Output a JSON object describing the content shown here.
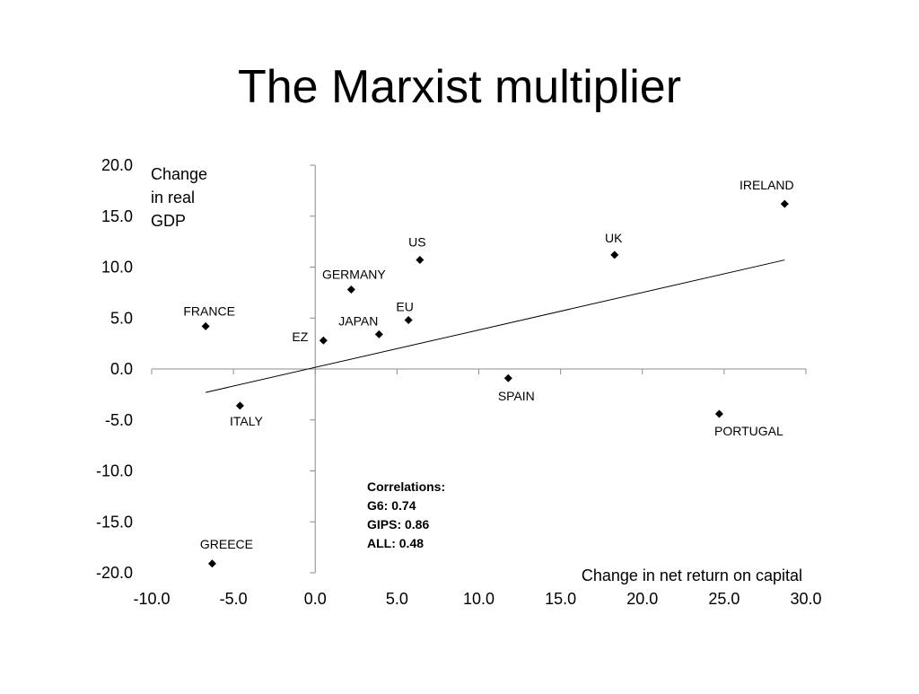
{
  "slide": {
    "title": "The Marxist multiplier"
  },
  "chart_data": {
    "type": "scatter",
    "xlabel": "Change in net return on capital",
    "ylabel_lines": [
      "Change",
      "in real",
      "GDP"
    ],
    "xlim": [
      -10,
      30
    ],
    "ylim": [
      -20,
      20
    ],
    "xticks": [
      -10,
      -5,
      0,
      5,
      10,
      15,
      20,
      25,
      30
    ],
    "yticks": [
      -20,
      -15,
      -10,
      -5,
      0,
      5,
      10,
      15,
      20
    ],
    "xtick_labels": [
      "-10.0",
      "-5.0",
      "0.0",
      "5.0",
      "10.0",
      "15.0",
      "20.0",
      "25.0",
      "30.0"
    ],
    "ytick_labels": [
      "-20.0",
      "-15.0",
      "-10.0",
      "-5.0",
      "0.0",
      "5.0",
      "10.0",
      "15.0",
      "20.0"
    ],
    "grid": false,
    "marker": "diamond",
    "points": [
      {
        "label": "IRELAND",
        "x": 28.7,
        "y": 16.2
      },
      {
        "label": "UK",
        "x": 18.3,
        "y": 11.2
      },
      {
        "label": "US",
        "x": 6.4,
        "y": 10.7
      },
      {
        "label": "GERMANY",
        "x": 2.2,
        "y": 7.8
      },
      {
        "label": "EU",
        "x": 5.7,
        "y": 4.8
      },
      {
        "label": "JAPAN",
        "x": 3.9,
        "y": 3.4
      },
      {
        "label": "EZ",
        "x": 0.5,
        "y": 2.8
      },
      {
        "label": "FRANCE",
        "x": -6.7,
        "y": 4.2
      },
      {
        "label": "SPAIN",
        "x": 11.8,
        "y": -0.9
      },
      {
        "label": "ITALY",
        "x": -4.6,
        "y": -3.6
      },
      {
        "label": "PORTUGAL",
        "x": 24.7,
        "y": -4.4
      },
      {
        "label": "GREECE",
        "x": -6.3,
        "y": -19.1
      }
    ],
    "trendline": {
      "x": [
        -6.7,
        28.7
      ],
      "y": [
        -2.3,
        10.7
      ]
    },
    "annotation_lines": [
      "Correlations:",
      "G6: 0.74",
      "GIPS: 0.86",
      "ALL: 0.48"
    ]
  }
}
